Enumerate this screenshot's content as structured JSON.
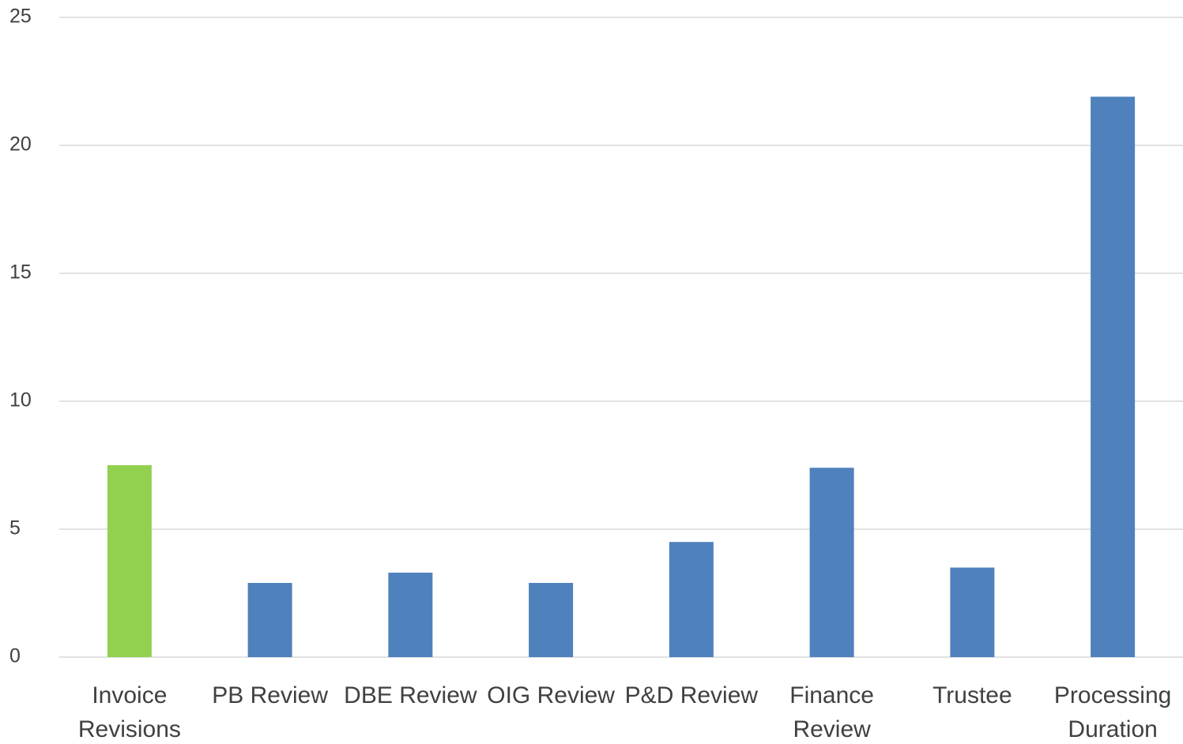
{
  "chart_data": {
    "type": "bar",
    "categories": [
      "Invoice Revisions",
      "PB Review",
      "DBE Review",
      "OIG Review",
      "P&D Review",
      "Finance Review",
      "Trustee",
      "Processing Duration"
    ],
    "values": [
      7.5,
      2.9,
      3.3,
      2.9,
      4.5,
      7.4,
      3.5,
      21.9
    ],
    "colors": [
      "#92d050",
      "#4f81bd",
      "#4f81bd",
      "#4f81bd",
      "#4f81bd",
      "#4f81bd",
      "#4f81bd",
      "#4f81bd"
    ],
    "ylim": [
      0,
      25
    ],
    "yticks": [
      0,
      5,
      10,
      15,
      20,
      25
    ],
    "grid": true
  }
}
